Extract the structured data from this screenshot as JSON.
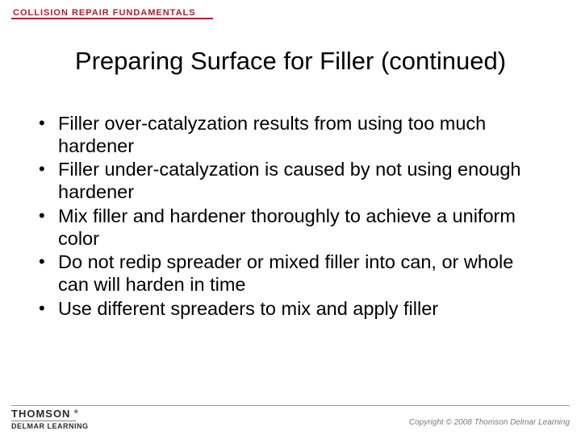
{
  "colors": {
    "brand_red": "#b11d2d",
    "rule_gray": "#999999",
    "text_black": "#000000",
    "footer_gray": "#7a7a7a",
    "background": "#ffffff"
  },
  "header": {
    "brand": "COLLISION REPAIR FUNDAMENTALS"
  },
  "slide": {
    "title": "Preparing Surface for Filler (continued)",
    "bullets": [
      "Filler over-catalyzation results from using too much hardener",
      "Filler under-catalyzation is caused by not using enough hardener",
      "Mix filler and hardener thoroughly to achieve a uniform color",
      "Do not redip spreader or mixed filler into can, or whole can will harden in time",
      "Use different spreaders to mix and apply filler"
    ]
  },
  "footer": {
    "publisher_top": "THOMSON",
    "publisher_bottom": "DELMAR LEARNING",
    "copyright": "Copyright © 2008 Thomson Delmar Learning"
  }
}
